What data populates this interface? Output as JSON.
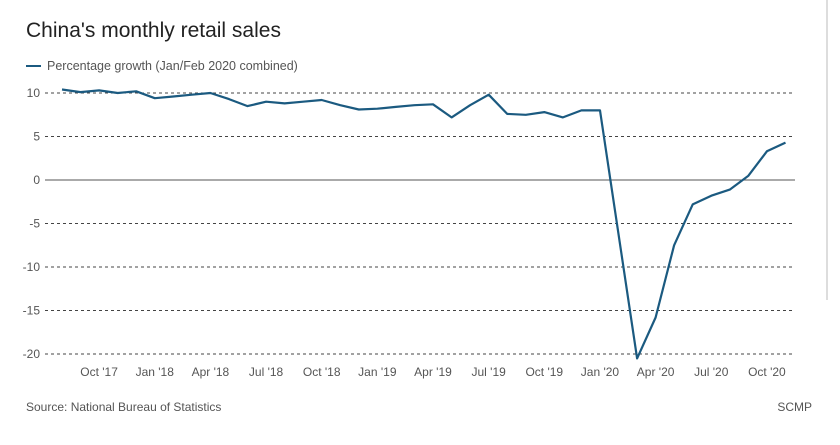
{
  "chart_data": {
    "type": "line",
    "title": "China's monthly retail sales",
    "legend": "Percentage growth (Jan/Feb 2020 combined)",
    "legend_position": "top-left",
    "xlabel": "",
    "ylabel": "",
    "ylim": [
      -20,
      10
    ],
    "yticks": [
      10,
      5,
      0,
      -5,
      -10,
      -15,
      -20
    ],
    "ytick_labels": [
      "10",
      "5",
      "0",
      "-5",
      "-10",
      "-15",
      "-20"
    ],
    "xticks": [
      "2017-10",
      "2018-01",
      "2018-04",
      "2018-07",
      "2018-10",
      "2019-01",
      "2019-04",
      "2019-07",
      "2019-10",
      "2020-01",
      "2020-04",
      "2020-07",
      "2020-10"
    ],
    "xtick_labels": [
      "Oct '17",
      "Jan '18",
      "Apr '18",
      "Jul '18",
      "Oct '18",
      "Jan '19",
      "Apr '19",
      "Jul '19",
      "Oct '19",
      "Jan '20",
      "Apr '20",
      "Jul '20",
      "Oct '20"
    ],
    "grid": "horizontal dashed",
    "color": "#1b5a80",
    "series": [
      {
        "name": "Percentage growth (Jan/Feb 2020 combined)",
        "points": [
          {
            "x": "2017-08",
            "y": 10.4
          },
          {
            "x": "2017-09",
            "y": 10.1
          },
          {
            "x": "2017-10",
            "y": 10.3
          },
          {
            "x": "2017-11",
            "y": 10.0
          },
          {
            "x": "2017-12",
            "y": 10.2
          },
          {
            "x": "2018-01",
            "y": 9.4
          },
          {
            "x": "2018-02",
            "y": 9.6
          },
          {
            "x": "2018-03",
            "y": 9.8
          },
          {
            "x": "2018-04",
            "y": 10.0
          },
          {
            "x": "2018-05",
            "y": 9.3
          },
          {
            "x": "2018-06",
            "y": 8.5
          },
          {
            "x": "2018-07",
            "y": 9.0
          },
          {
            "x": "2018-08",
            "y": 8.8
          },
          {
            "x": "2018-09",
            "y": 9.0
          },
          {
            "x": "2018-10",
            "y": 9.2
          },
          {
            "x": "2018-11",
            "y": 8.6
          },
          {
            "x": "2018-12",
            "y": 8.1
          },
          {
            "x": "2019-01",
            "y": 8.2
          },
          {
            "x": "2019-02",
            "y": 8.4
          },
          {
            "x": "2019-03",
            "y": 8.6
          },
          {
            "x": "2019-04",
            "y": 8.7
          },
          {
            "x": "2019-05",
            "y": 7.2
          },
          {
            "x": "2019-06",
            "y": 8.6
          },
          {
            "x": "2019-07",
            "y": 9.8
          },
          {
            "x": "2019-08",
            "y": 7.6
          },
          {
            "x": "2019-09",
            "y": 7.5
          },
          {
            "x": "2019-10",
            "y": 7.8
          },
          {
            "x": "2019-11",
            "y": 7.2
          },
          {
            "x": "2019-12",
            "y": 8.0
          },
          {
            "x": "2020-01",
            "y": 8.0
          },
          {
            "x": "2020-03",
            "y": -20.5
          },
          {
            "x": "2020-04",
            "y": -15.8
          },
          {
            "x": "2020-05",
            "y": -7.5
          },
          {
            "x": "2020-06",
            "y": -2.8
          },
          {
            "x": "2020-07",
            "y": -1.8
          },
          {
            "x": "2020-08",
            "y": -1.1
          },
          {
            "x": "2020-09",
            "y": 0.5
          },
          {
            "x": "2020-10",
            "y": 3.3
          },
          {
            "x": "2020-11",
            "y": 4.3
          }
        ]
      }
    ]
  },
  "footer": {
    "source": "Source: National Bureau of Statistics",
    "credit": "SCMP"
  }
}
